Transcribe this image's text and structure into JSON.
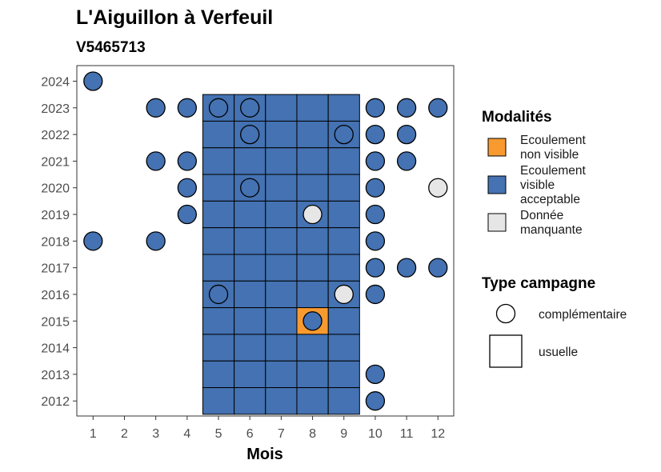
{
  "chart_data": {
    "type": "heatmap",
    "title": "L'Aiguillon à Verfeuil",
    "subtitle": "V5465713",
    "xlabel": "Mois",
    "ylabel": "",
    "x_ticks": [
      1,
      2,
      3,
      4,
      5,
      6,
      7,
      8,
      9,
      10,
      11,
      12
    ],
    "y_ticks": [
      2012,
      2013,
      2014,
      2015,
      2016,
      2017,
      2018,
      2019,
      2020,
      2021,
      2022,
      2023,
      2024
    ],
    "xlim": [
      1,
      12
    ],
    "ylim": [
      2012,
      2024
    ],
    "grid": false,
    "colors": {
      "ecoulement_non_visible": "#F89A30",
      "ecoulement_visible_acceptable": "#4472B2",
      "donnee_manquante": "#E6E6E6"
    },
    "legend": {
      "placement": "right",
      "modalites_title": "Modalités",
      "modalites": [
        {
          "key": "ecoulement_non_visible",
          "lines": [
            "Ecoulement",
            "non visible"
          ]
        },
        {
          "key": "ecoulement_visible_acceptable",
          "lines": [
            "Ecoulement",
            "visible",
            "acceptable"
          ]
        },
        {
          "key": "donnee_manquante",
          "lines": [
            "Donnée",
            "manquante"
          ]
        }
      ],
      "type_title": "Type campagne",
      "types": [
        {
          "shape": "circle",
          "label": "complémentaire"
        },
        {
          "shape": "square",
          "label": "usuelle"
        }
      ]
    },
    "usuelle": [
      {
        "year": 2023,
        "months": [
          5,
          6,
          7,
          8,
          9
        ],
        "modalite": "ecoulement_visible_acceptable"
      },
      {
        "year": 2022,
        "months": [
          5,
          6,
          7,
          8,
          9
        ],
        "modalite": "ecoulement_visible_acceptable"
      },
      {
        "year": 2021,
        "months": [
          5,
          6,
          7,
          8,
          9
        ],
        "modalite": "ecoulement_visible_acceptable"
      },
      {
        "year": 2020,
        "months": [
          5,
          6,
          7,
          8,
          9
        ],
        "modalite": "ecoulement_visible_acceptable"
      },
      {
        "year": 2019,
        "months": [
          5,
          6,
          7,
          8,
          9
        ],
        "modalite": "ecoulement_visible_acceptable"
      },
      {
        "year": 2018,
        "months": [
          5,
          6,
          7,
          8,
          9
        ],
        "modalite": "ecoulement_visible_acceptable"
      },
      {
        "year": 2017,
        "months": [
          5,
          6,
          7,
          8,
          9
        ],
        "modalite": "ecoulement_visible_acceptable"
      },
      {
        "year": 2016,
        "months": [
          5,
          6,
          7,
          8,
          9
        ],
        "modalite": "ecoulement_visible_acceptable"
      },
      {
        "year": 2015,
        "months": [
          5,
          6,
          7,
          9
        ],
        "modalite": "ecoulement_visible_acceptable"
      },
      {
        "year": 2015,
        "months": [
          8
        ],
        "modalite": "ecoulement_non_visible"
      },
      {
        "year": 2014,
        "months": [
          5,
          6,
          7,
          8,
          9
        ],
        "modalite": "ecoulement_visible_acceptable"
      },
      {
        "year": 2013,
        "months": [
          5,
          6,
          7,
          8,
          9
        ],
        "modalite": "ecoulement_visible_acceptable"
      },
      {
        "year": 2012,
        "months": [
          5,
          6,
          7,
          8,
          9
        ],
        "modalite": "ecoulement_visible_acceptable"
      }
    ],
    "complementaire": [
      {
        "year": 2024,
        "month": 1,
        "modalite": "ecoulement_visible_acceptable"
      },
      {
        "year": 2023,
        "month": 3,
        "modalite": "ecoulement_visible_acceptable"
      },
      {
        "year": 2023,
        "month": 4,
        "modalite": "ecoulement_visible_acceptable"
      },
      {
        "year": 2023,
        "month": 5,
        "modalite": "ecoulement_visible_acceptable"
      },
      {
        "year": 2023,
        "month": 6,
        "modalite": "ecoulement_visible_acceptable"
      },
      {
        "year": 2023,
        "month": 10,
        "modalite": "ecoulement_visible_acceptable"
      },
      {
        "year": 2023,
        "month": 11,
        "modalite": "ecoulement_visible_acceptable"
      },
      {
        "year": 2023,
        "month": 12,
        "modalite": "ecoulement_visible_acceptable"
      },
      {
        "year": 2022,
        "month": 6,
        "modalite": "ecoulement_visible_acceptable"
      },
      {
        "year": 2022,
        "month": 9,
        "modalite": "ecoulement_visible_acceptable"
      },
      {
        "year": 2022,
        "month": 10,
        "modalite": "ecoulement_visible_acceptable"
      },
      {
        "year": 2022,
        "month": 11,
        "modalite": "ecoulement_visible_acceptable"
      },
      {
        "year": 2021,
        "month": 3,
        "modalite": "ecoulement_visible_acceptable"
      },
      {
        "year": 2021,
        "month": 4,
        "modalite": "ecoulement_visible_acceptable"
      },
      {
        "year": 2021,
        "month": 10,
        "modalite": "ecoulement_visible_acceptable"
      },
      {
        "year": 2021,
        "month": 11,
        "modalite": "ecoulement_visible_acceptable"
      },
      {
        "year": 2020,
        "month": 4,
        "modalite": "ecoulement_visible_acceptable"
      },
      {
        "year": 2020,
        "month": 6,
        "modalite": "ecoulement_visible_acceptable"
      },
      {
        "year": 2020,
        "month": 10,
        "modalite": "ecoulement_visible_acceptable"
      },
      {
        "year": 2020,
        "month": 12,
        "modalite": "donnee_manquante"
      },
      {
        "year": 2019,
        "month": 4,
        "modalite": "ecoulement_visible_acceptable"
      },
      {
        "year": 2019,
        "month": 8,
        "modalite": "donnee_manquante"
      },
      {
        "year": 2019,
        "month": 10,
        "modalite": "ecoulement_visible_acceptable"
      },
      {
        "year": 2018,
        "month": 1,
        "modalite": "ecoulement_visible_acceptable"
      },
      {
        "year": 2018,
        "month": 3,
        "modalite": "ecoulement_visible_acceptable"
      },
      {
        "year": 2018,
        "month": 10,
        "modalite": "ecoulement_visible_acceptable"
      },
      {
        "year": 2017,
        "month": 10,
        "modalite": "ecoulement_visible_acceptable"
      },
      {
        "year": 2017,
        "month": 11,
        "modalite": "ecoulement_visible_acceptable"
      },
      {
        "year": 2017,
        "month": 12,
        "modalite": "ecoulement_visible_acceptable"
      },
      {
        "year": 2016,
        "month": 5,
        "modalite": "ecoulement_visible_acceptable"
      },
      {
        "year": 2016,
        "month": 9,
        "modalite": "donnee_manquante"
      },
      {
        "year": 2016,
        "month": 10,
        "modalite": "ecoulement_visible_acceptable"
      },
      {
        "year": 2015,
        "month": 8,
        "modalite": "ecoulement_visible_acceptable"
      },
      {
        "year": 2013,
        "month": 10,
        "modalite": "ecoulement_visible_acceptable"
      },
      {
        "year": 2012,
        "month": 10,
        "modalite": "ecoulement_visible_acceptable"
      }
    ]
  }
}
